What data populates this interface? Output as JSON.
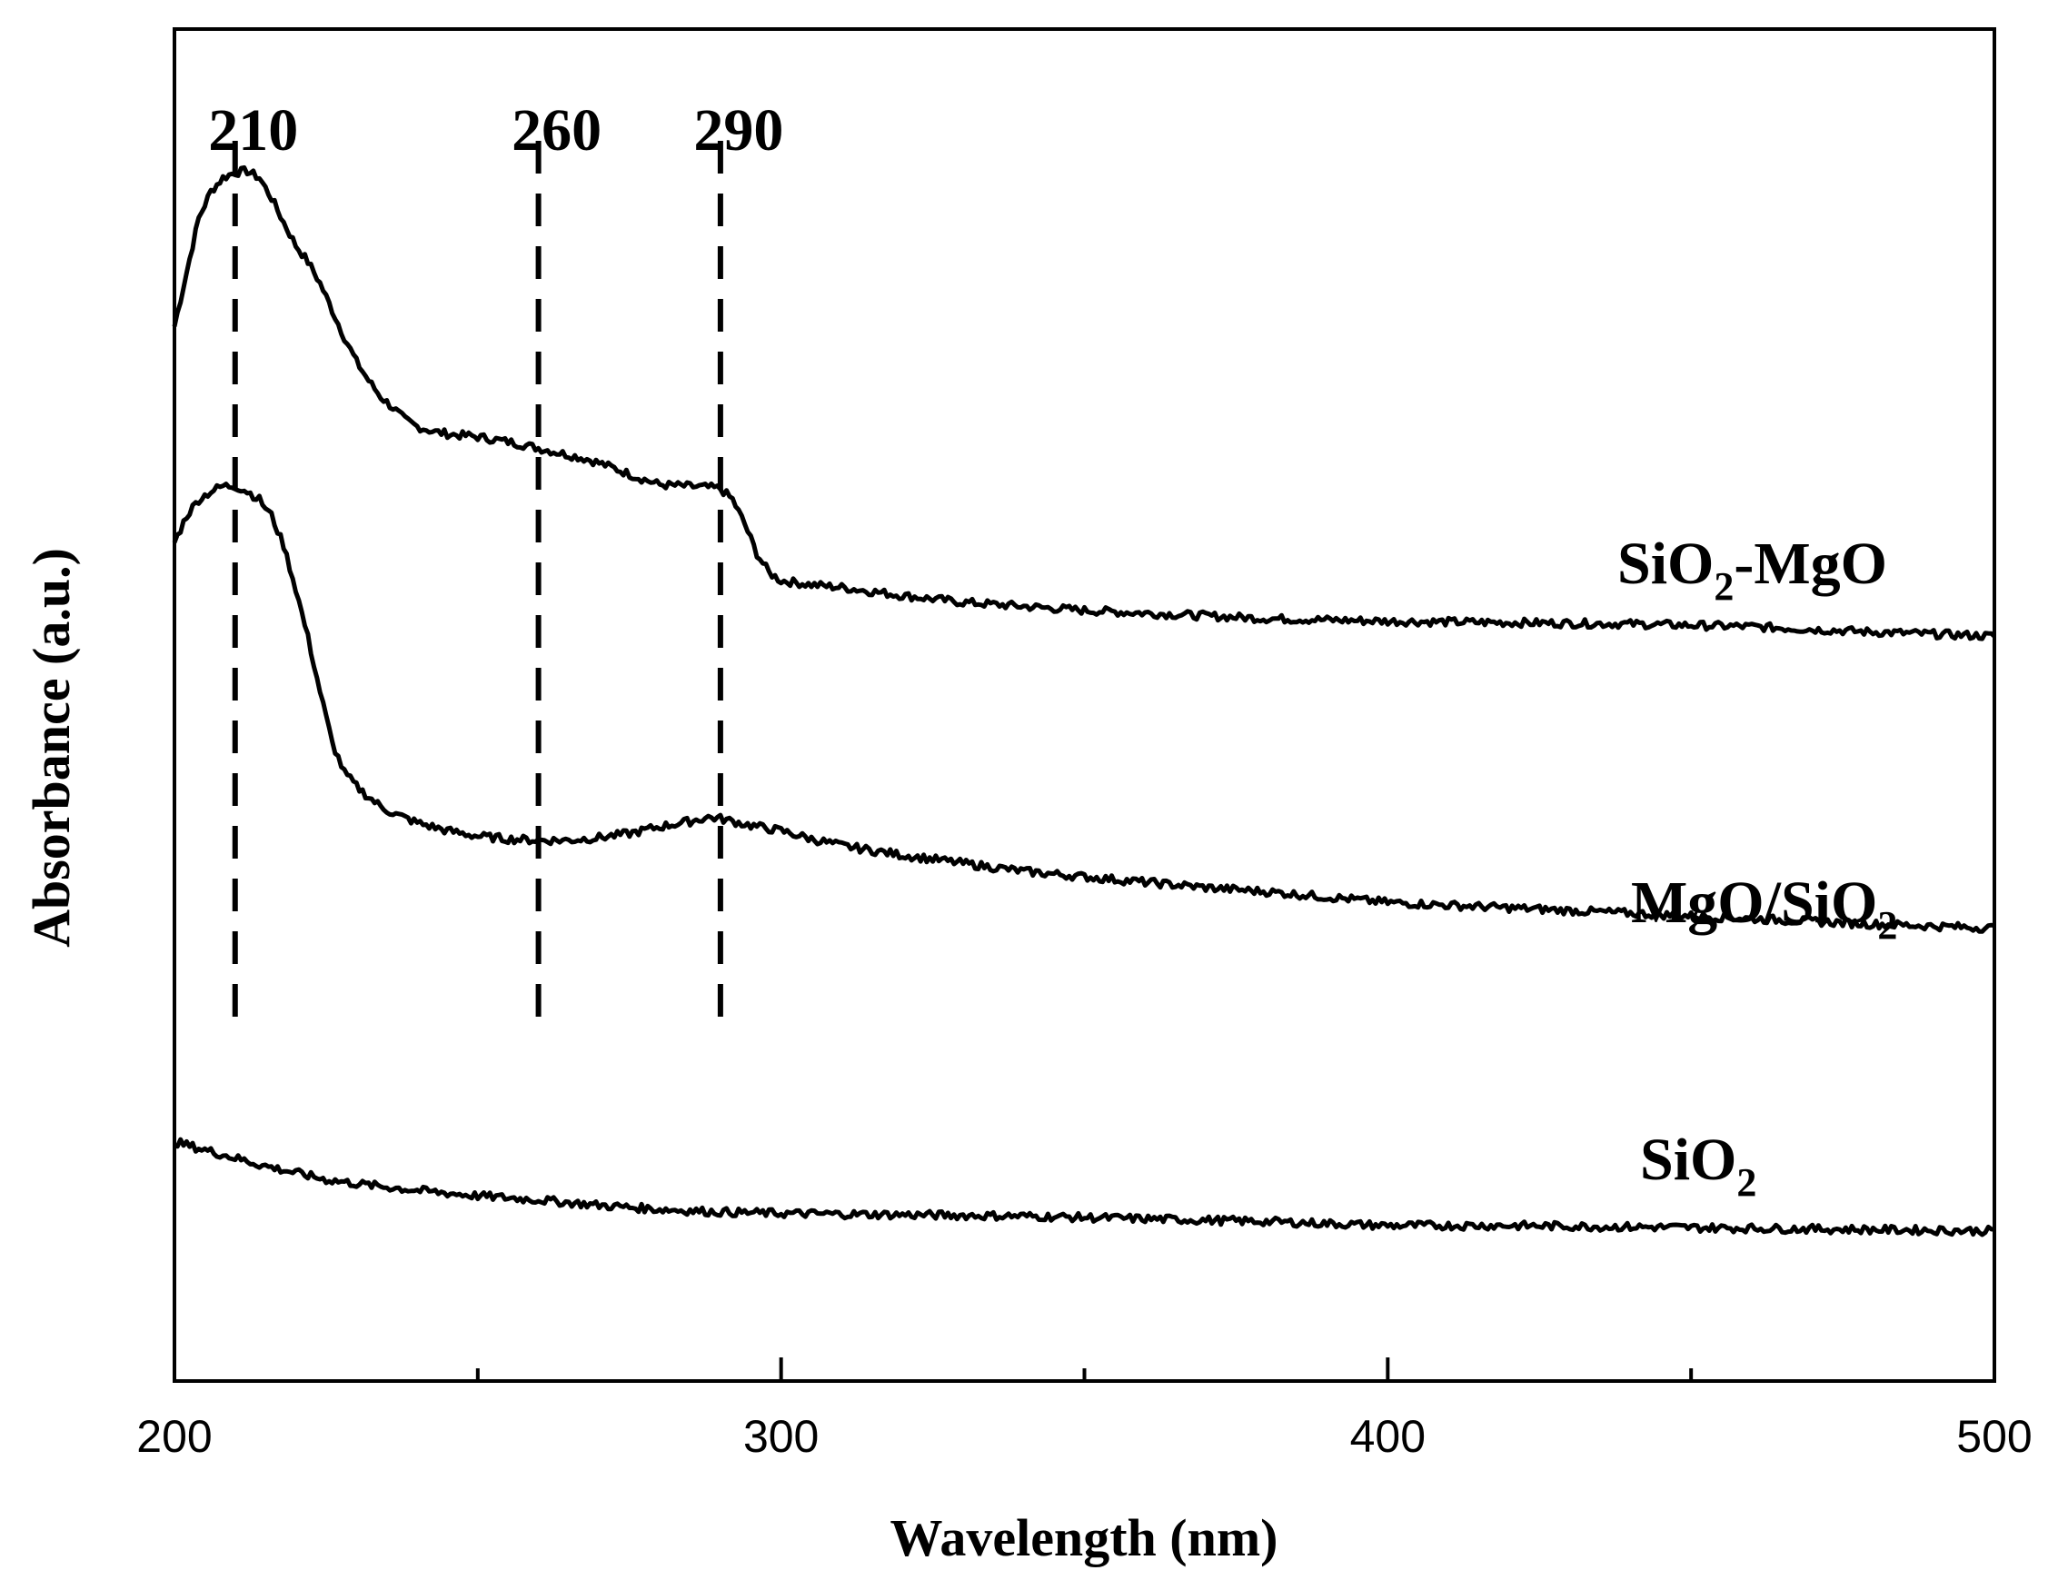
{
  "chart_data": {
    "type": "line",
    "xlabel": "Wavelength (nm)",
    "ylabel": "Absorbance (a.u.)",
    "xlim": [
      200,
      500
    ],
    "ylim": [
      0,
      1
    ],
    "x_ticks": [
      "200",
      "300",
      "400",
      "500"
    ],
    "y_ticks": [],
    "grid": false,
    "legend": "none",
    "annotations": [
      {
        "x": 210,
        "label": "210"
      },
      {
        "x": 260,
        "label": "260"
      },
      {
        "x": 290,
        "label": "290"
      }
    ],
    "series": [
      {
        "name": "SiO2-MgO",
        "label_main": "SiO",
        "label_sub": "2",
        "label_tail": "-MgO",
        "color": "#000000",
        "points": [
          [
            200,
            0.78
          ],
          [
            202,
            0.82
          ],
          [
            204,
            0.86
          ],
          [
            206,
            0.88
          ],
          [
            208,
            0.89
          ],
          [
            210,
            0.894
          ],
          [
            212,
            0.895
          ],
          [
            214,
            0.89
          ],
          [
            216,
            0.875
          ],
          [
            218,
            0.857
          ],
          [
            220,
            0.84
          ],
          [
            222,
            0.828
          ],
          [
            224,
            0.812
          ],
          [
            226,
            0.792
          ],
          [
            228,
            0.772
          ],
          [
            230,
            0.754
          ],
          [
            232,
            0.74
          ],
          [
            234,
            0.728
          ],
          [
            236,
            0.72
          ],
          [
            238,
            0.711
          ],
          [
            240,
            0.706
          ],
          [
            243,
            0.702
          ],
          [
            246,
            0.7
          ],
          [
            249,
            0.699
          ],
          [
            252,
            0.697
          ],
          [
            256,
            0.694
          ],
          [
            260,
            0.69
          ],
          [
            264,
            0.686
          ],
          [
            268,
            0.682
          ],
          [
            272,
            0.676
          ],
          [
            276,
            0.669
          ],
          [
            280,
            0.663
          ],
          [
            284,
            0.662
          ],
          [
            288,
            0.661
          ],
          [
            290,
            0.66
          ],
          [
            292,
            0.652
          ],
          [
            294,
            0.634
          ],
          [
            296,
            0.612
          ],
          [
            298,
            0.598
          ],
          [
            300,
            0.592
          ],
          [
            305,
            0.589
          ],
          [
            310,
            0.587
          ],
          [
            320,
            0.581
          ],
          [
            330,
            0.576
          ],
          [
            340,
            0.573
          ],
          [
            350,
            0.57
          ],
          [
            360,
            0.568
          ],
          [
            370,
            0.566
          ],
          [
            380,
            0.564
          ],
          [
            390,
            0.563
          ],
          [
            400,
            0.562
          ],
          [
            420,
            0.561
          ],
          [
            440,
            0.56
          ],
          [
            460,
            0.558
          ],
          [
            480,
            0.554
          ],
          [
            500,
            0.551
          ]
        ]
      },
      {
        "name": "MgO/SiO2",
        "label_main": "MgO/SiO",
        "label_sub": "2",
        "label_tail": "",
        "color": "#000000",
        "points": [
          [
            200,
            0.62
          ],
          [
            202,
            0.64
          ],
          [
            204,
            0.652
          ],
          [
            206,
            0.658
          ],
          [
            208,
            0.662
          ],
          [
            210,
            0.662
          ],
          [
            212,
            0.658
          ],
          [
            214,
            0.652
          ],
          [
            216,
            0.64
          ],
          [
            218,
            0.618
          ],
          [
            220,
            0.586
          ],
          [
            222,
            0.55
          ],
          [
            224,
            0.51
          ],
          [
            226,
            0.472
          ],
          [
            228,
            0.45
          ],
          [
            230,
            0.44
          ],
          [
            232,
            0.432
          ],
          [
            234,
            0.425
          ],
          [
            236,
            0.42
          ],
          [
            240,
            0.413
          ],
          [
            245,
            0.407
          ],
          [
            250,
            0.403
          ],
          [
            255,
            0.401
          ],
          [
            260,
            0.4
          ],
          [
            265,
            0.4
          ],
          [
            270,
            0.402
          ],
          [
            275,
            0.405
          ],
          [
            280,
            0.41
          ],
          [
            285,
            0.414
          ],
          [
            288,
            0.417
          ],
          [
            290,
            0.416
          ],
          [
            295,
            0.411
          ],
          [
            300,
            0.407
          ],
          [
            305,
            0.401
          ],
          [
            310,
            0.396
          ],
          [
            320,
            0.389
          ],
          [
            330,
            0.383
          ],
          [
            340,
            0.377
          ],
          [
            350,
            0.373
          ],
          [
            360,
            0.369
          ],
          [
            370,
            0.365
          ],
          [
            380,
            0.362
          ],
          [
            390,
            0.358
          ],
          [
            400,
            0.354
          ],
          [
            420,
            0.35
          ],
          [
            440,
            0.346
          ],
          [
            460,
            0.342
          ],
          [
            480,
            0.338
          ],
          [
            500,
            0.335
          ]
        ]
      },
      {
        "name": "SiO2",
        "label_main": "SiO",
        "label_sub": "2",
        "label_tail": "",
        "color": "#000000",
        "points": [
          [
            200,
            0.177
          ],
          [
            205,
            0.171
          ],
          [
            210,
            0.165
          ],
          [
            215,
            0.159
          ],
          [
            220,
            0.154
          ],
          [
            225,
            0.149
          ],
          [
            230,
            0.146
          ],
          [
            240,
            0.141
          ],
          [
            250,
            0.137
          ],
          [
            260,
            0.134
          ],
          [
            270,
            0.13
          ],
          [
            280,
            0.127
          ],
          [
            290,
            0.125
          ],
          [
            300,
            0.124
          ],
          [
            320,
            0.123
          ],
          [
            340,
            0.122
          ],
          [
            360,
            0.12
          ],
          [
            380,
            0.118
          ],
          [
            400,
            0.115
          ],
          [
            420,
            0.115
          ],
          [
            440,
            0.114
          ],
          [
            460,
            0.113
          ],
          [
            480,
            0.112
          ],
          [
            500,
            0.111
          ]
        ]
      }
    ]
  }
}
